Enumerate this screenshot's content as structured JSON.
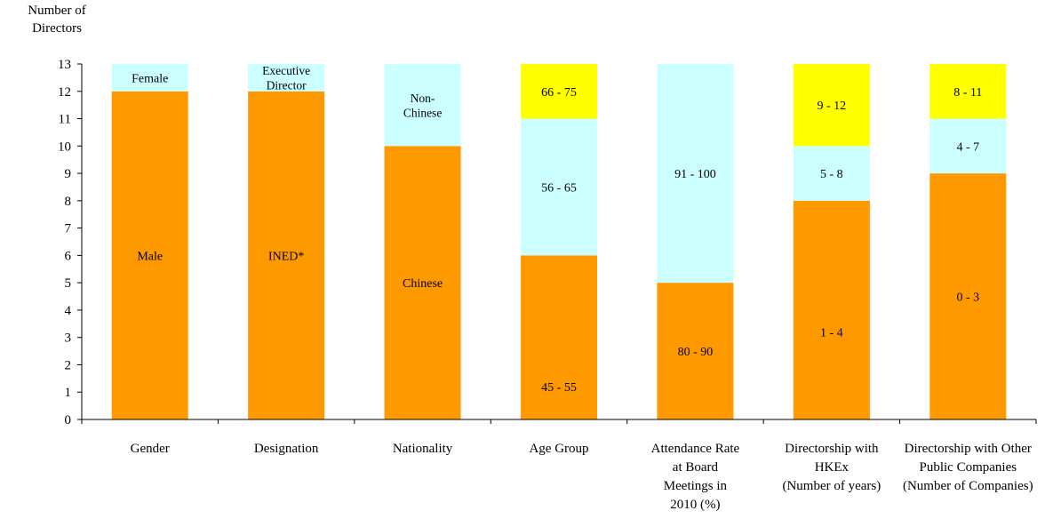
{
  "chart_data": {
    "type": "bar",
    "stacked": true,
    "ylabel_lines": [
      "Number of",
      "Directors"
    ],
    "ylim": [
      0,
      13
    ],
    "yticks": [
      0,
      1,
      2,
      3,
      4,
      5,
      6,
      7,
      8,
      9,
      10,
      11,
      12,
      13
    ],
    "grid": false,
    "colors": {
      "orange": "#FF9900",
      "cyan": "#CCFFFF",
      "yellow": "#FFFF00"
    },
    "categories": [
      {
        "label_lines": [
          "Gender"
        ],
        "segments": [
          {
            "label": [
              "Male"
            ],
            "value": 12,
            "color": "#FF9900"
          },
          {
            "label": [
              "Female"
            ],
            "value": 1,
            "color": "#CCFFFF"
          }
        ]
      },
      {
        "label_lines": [
          "Designation"
        ],
        "segments": [
          {
            "label": [
              "INED*"
            ],
            "value": 12,
            "color": "#FF9900"
          },
          {
            "label": [
              "Executive",
              "Director"
            ],
            "value": 1,
            "color": "#CCFFFF"
          }
        ]
      },
      {
        "label_lines": [
          "Nationality"
        ],
        "segments": [
          {
            "label": [
              "Chinese"
            ],
            "value": 10,
            "color": "#FF9900"
          },
          {
            "label": [
              "Non-",
              "Chinese"
            ],
            "value": 3,
            "color": "#CCFFFF"
          }
        ]
      },
      {
        "label_lines": [
          "Age Group"
        ],
        "segments": [
          {
            "label": [
              "45 - 55"
            ],
            "value": 6,
            "color": "#FF9900",
            "label_pos": 0.8
          },
          {
            "label": [
              "56 - 65"
            ],
            "value": 5,
            "color": "#CCFFFF"
          },
          {
            "label": [
              "66 - 75"
            ],
            "value": 2,
            "color": "#FFFF00"
          }
        ]
      },
      {
        "label_lines": [
          "Attendance Rate",
          "at Board",
          "Meetings in",
          "2010 (%)"
        ],
        "segments": [
          {
            "label": [
              "80 - 90"
            ],
            "value": 5,
            "color": "#FF9900"
          },
          {
            "label": [
              "91 - 100"
            ],
            "value": 8,
            "color": "#CCFFFF"
          }
        ]
      },
      {
        "label_lines": [
          "Directorship with",
          "HKEx",
          "(Number of years)"
        ],
        "segments": [
          {
            "label": [
              "1 - 4"
            ],
            "value": 8,
            "color": "#FF9900",
            "label_pos": 0.6
          },
          {
            "label": [
              "5 - 8"
            ],
            "value": 2,
            "color": "#CCFFFF"
          },
          {
            "label": [
              "9 - 12"
            ],
            "value": 3,
            "color": "#FFFF00"
          }
        ]
      },
      {
        "label_lines": [
          "Directorship with Other",
          "Public Companies",
          "(Number of Companies)"
        ],
        "segments": [
          {
            "label": [
              "0 - 3"
            ],
            "value": 9,
            "color": "#FF9900"
          },
          {
            "label": [
              "4 - 7"
            ],
            "value": 2,
            "color": "#CCFFFF"
          },
          {
            "label": [
              "8 - 11"
            ],
            "value": 2,
            "color": "#FFFF00"
          }
        ]
      }
    ]
  }
}
